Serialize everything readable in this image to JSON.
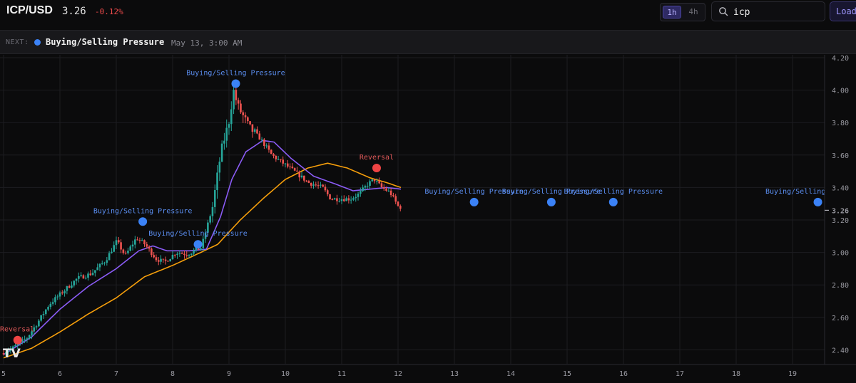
{
  "header": {
    "pair": "ICP/USD",
    "price": "3.26",
    "change": "-0.12%",
    "timeframes": [
      "1h",
      "4h"
    ],
    "active_timeframe": "1h",
    "search": {
      "value": "icp",
      "icon": "search-icon"
    },
    "load_label": "Load"
  },
  "next_event": {
    "label": "NEXT:",
    "name": "Buying/Selling Pressure",
    "time": "May 13, 3:00 AM",
    "color": "#3b82f6"
  },
  "colors": {
    "up": "#26a69a",
    "down": "#ef5350",
    "ma_fast": "#8b5cf6",
    "ma_slow": "#f59e0b",
    "event_blue": "#3b82f6",
    "event_red": "#ef4444"
  },
  "chart_data": {
    "type": "candlestick",
    "x_ticks": [
      "5",
      "6",
      "7",
      "8",
      "9",
      "10",
      "11",
      "12",
      "13",
      "14",
      "15",
      "16",
      "17",
      "18",
      "19"
    ],
    "y_ticks": [
      "4.20",
      "4.00",
      "3.80",
      "3.60",
      "3.40",
      "3.20",
      "3.00",
      "2.80",
      "2.60",
      "2.40"
    ],
    "xlim": [
      5,
      19.6
    ],
    "ylim": [
      2.35,
      4.22
    ],
    "last_price": "3.26",
    "anchors": [
      [
        5.0,
        2.38
      ],
      [
        5.2,
        2.41
      ],
      [
        5.45,
        2.47
      ],
      [
        5.65,
        2.57
      ],
      [
        5.85,
        2.68
      ],
      [
        6.1,
        2.76
      ],
      [
        6.35,
        2.84
      ],
      [
        6.6,
        2.87
      ],
      [
        6.85,
        2.95
      ],
      [
        7.05,
        3.07
      ],
      [
        7.2,
        2.98
      ],
      [
        7.4,
        3.09
      ],
      [
        7.55,
        3.05
      ],
      [
        7.75,
        2.96
      ],
      [
        7.9,
        2.94
      ],
      [
        8.1,
        3.0
      ],
      [
        8.3,
        2.99
      ],
      [
        8.55,
        3.03
      ],
      [
        8.75,
        3.28
      ],
      [
        8.9,
        3.62
      ],
      [
        9.05,
        3.82
      ],
      [
        9.12,
        4.0
      ],
      [
        9.2,
        3.9
      ],
      [
        9.4,
        3.77
      ],
      [
        9.6,
        3.7
      ],
      [
        9.8,
        3.6
      ],
      [
        10.0,
        3.55
      ],
      [
        10.2,
        3.5
      ],
      [
        10.45,
        3.43
      ],
      [
        10.7,
        3.4
      ],
      [
        10.85,
        3.33
      ],
      [
        11.0,
        3.33
      ],
      [
        11.2,
        3.33
      ],
      [
        11.35,
        3.36
      ],
      [
        11.5,
        3.42
      ],
      [
        11.62,
        3.45
      ],
      [
        11.75,
        3.4
      ],
      [
        11.9,
        3.37
      ],
      [
        12.05,
        3.28
      ]
    ],
    "ma_fast": [
      [
        5.0,
        2.37
      ],
      [
        5.5,
        2.48
      ],
      [
        6.0,
        2.65
      ],
      [
        6.5,
        2.79
      ],
      [
        7.0,
        2.9
      ],
      [
        7.4,
        3.01
      ],
      [
        7.65,
        3.04
      ],
      [
        7.9,
        3.01
      ],
      [
        8.3,
        3.01
      ],
      [
        8.6,
        3.02
      ],
      [
        8.85,
        3.22
      ],
      [
        9.05,
        3.45
      ],
      [
        9.3,
        3.62
      ],
      [
        9.6,
        3.69
      ],
      [
        9.8,
        3.68
      ],
      [
        10.1,
        3.58
      ],
      [
        10.5,
        3.47
      ],
      [
        10.9,
        3.42
      ],
      [
        11.2,
        3.38
      ],
      [
        11.5,
        3.39
      ],
      [
        11.8,
        3.4
      ],
      [
        12.05,
        3.39
      ]
    ],
    "ma_slow": [
      [
        5.0,
        2.35
      ],
      [
        5.5,
        2.41
      ],
      [
        6.0,
        2.51
      ],
      [
        6.5,
        2.62
      ],
      [
        7.0,
        2.72
      ],
      [
        7.5,
        2.85
      ],
      [
        8.0,
        2.92
      ],
      [
        8.5,
        3.0
      ],
      [
        8.8,
        3.05
      ],
      [
        9.2,
        3.2
      ],
      [
        9.6,
        3.33
      ],
      [
        10.0,
        3.45
      ],
      [
        10.4,
        3.52
      ],
      [
        10.75,
        3.55
      ],
      [
        11.1,
        3.52
      ],
      [
        11.5,
        3.46
      ],
      [
        11.8,
        3.43
      ],
      [
        12.05,
        3.4
      ]
    ],
    "events": [
      {
        "type": "Reversal",
        "label": "Reversal",
        "x": 5.25,
        "y": 2.46,
        "color": "#ef4444",
        "label_pos": "above"
      },
      {
        "type": "Buying/Selling Pressure",
        "label": "Buying/Selling Pressure",
        "x": 7.47,
        "y": 3.19,
        "color": "#3b82f6",
        "label_pos": "above"
      },
      {
        "type": "Buying/Selling Pressure",
        "label": "Buying/Selling Pressure",
        "x": 8.45,
        "y": 3.05,
        "color": "#3b82f6",
        "label_pos": "above"
      },
      {
        "type": "Buying/Selling Pressure",
        "label": "Buying/Selling Pressure",
        "x": 9.12,
        "y": 4.04,
        "color": "#3b82f6",
        "label_pos": "above"
      },
      {
        "type": "Reversal",
        "label": "Reversal",
        "x": 11.62,
        "y": 3.52,
        "color": "#ef4444",
        "label_pos": "above"
      },
      {
        "type": "Buying/Selling Pressure",
        "label": "Buying/Selling Pressure",
        "x": 13.35,
        "y": 3.31,
        "color": "#3b82f6",
        "label_pos": "above"
      },
      {
        "type": "Buying/Selling Pressure",
        "label": "Buying/Selling Pressure",
        "x": 14.72,
        "y": 3.31,
        "color": "#3b82f6",
        "label_pos": "above"
      },
      {
        "type": "Buying/Selling Pressure",
        "label": "Buying/Selling Pressure",
        "x": 15.82,
        "y": 3.31,
        "color": "#3b82f6",
        "label_pos": "above"
      },
      {
        "type": "Buying/Selling Pressure",
        "label": "Buying/Selling Pressure",
        "x": 19.45,
        "y": 3.31,
        "color": "#3b82f6",
        "label_pos": "above"
      }
    ]
  }
}
